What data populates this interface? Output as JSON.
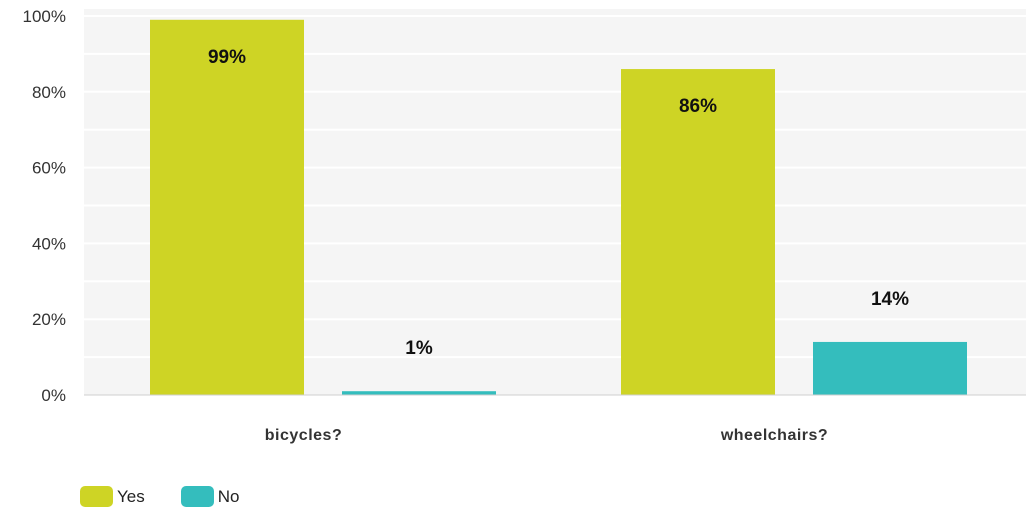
{
  "chart_data": {
    "type": "bar",
    "categories": [
      "bicycles?",
      "wheelchairs?"
    ],
    "series": [
      {
        "name": "Yes",
        "values": [
          99,
          86
        ],
        "labels": [
          "99%",
          "86%"
        ],
        "color": "#ced425"
      },
      {
        "name": "No",
        "values": [
          1,
          14
        ],
        "labels": [
          "1%",
          "14%"
        ],
        "color": "#34bdbd"
      }
    ],
    "ylim": [
      0,
      100
    ],
    "yticks": [
      0,
      20,
      40,
      60,
      80,
      100
    ],
    "ytick_labels": [
      "0%",
      "20%",
      "40%",
      "60%",
      "80%",
      "100%"
    ],
    "grid": true,
    "legend_position": "bottom-left"
  },
  "legend": {
    "items": [
      {
        "label": "Yes",
        "color": "#ced425"
      },
      {
        "label": "No",
        "color": "#34bdbd"
      }
    ]
  }
}
